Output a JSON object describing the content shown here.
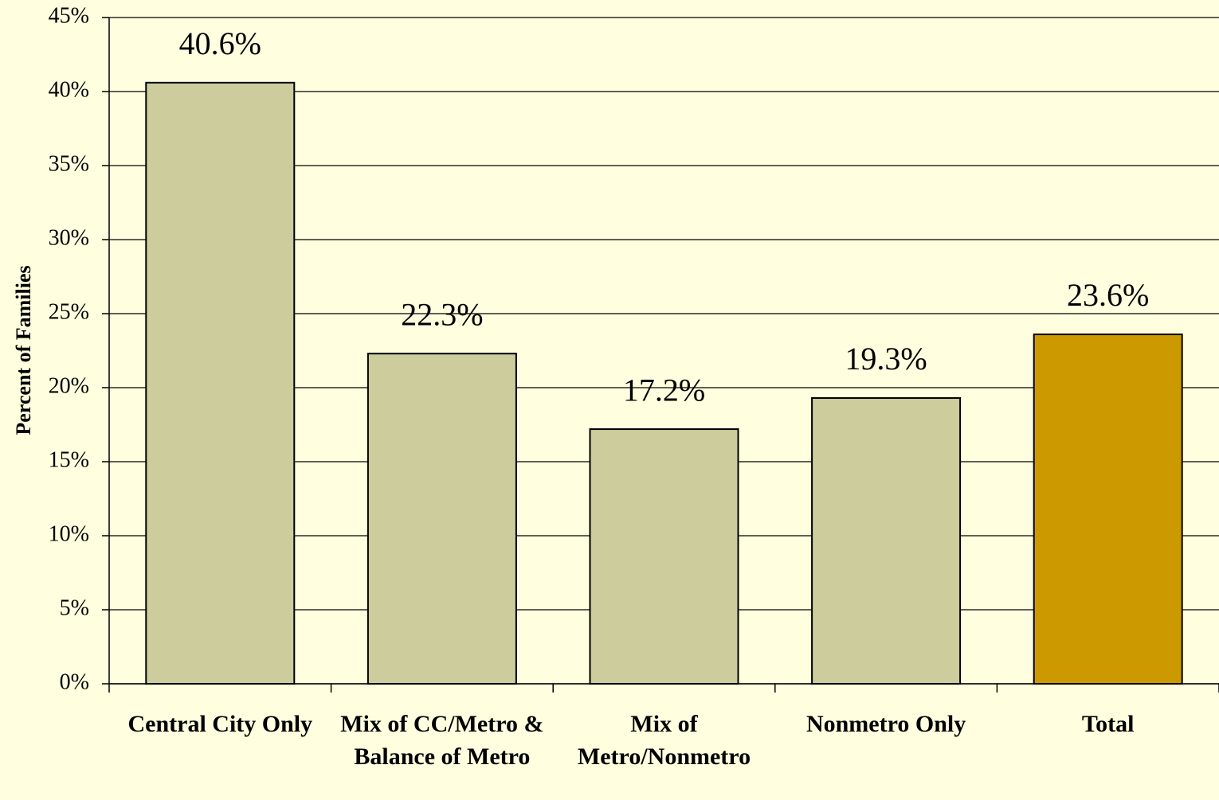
{
  "chart_data": {
    "type": "bar",
    "y_label": "Percent of Families",
    "categories": [
      "Central City Only",
      "Mix of CC/Metro & Balance of Metro",
      "Mix of Metro/Nonmetro",
      "Nonmetro Only",
      "Total"
    ],
    "values": [
      40.6,
      22.3,
      17.2,
      19.3,
      23.6
    ],
    "value_labels": [
      "40.6%",
      "22.3%",
      "17.2%",
      "19.3%",
      "23.6%"
    ],
    "colors": [
      "#cccc9c",
      "#cccc9c",
      "#cccc9c",
      "#cccc9c",
      "#cc9900"
    ],
    "ylim": [
      0,
      45
    ],
    "yticks": [
      {
        "value": 0,
        "label": "0%"
      },
      {
        "value": 5,
        "label": "5%"
      },
      {
        "value": 10,
        "label": "10%"
      },
      {
        "value": 15,
        "label": "15%"
      },
      {
        "value": 20,
        "label": "20%"
      },
      {
        "value": 25,
        "label": "25%"
      },
      {
        "value": 30,
        "label": "30%"
      },
      {
        "value": 35,
        "label": "35%"
      },
      {
        "value": 40,
        "label": "40%"
      },
      {
        "value": 45,
        "label": "45%"
      }
    ],
    "grid": true
  }
}
